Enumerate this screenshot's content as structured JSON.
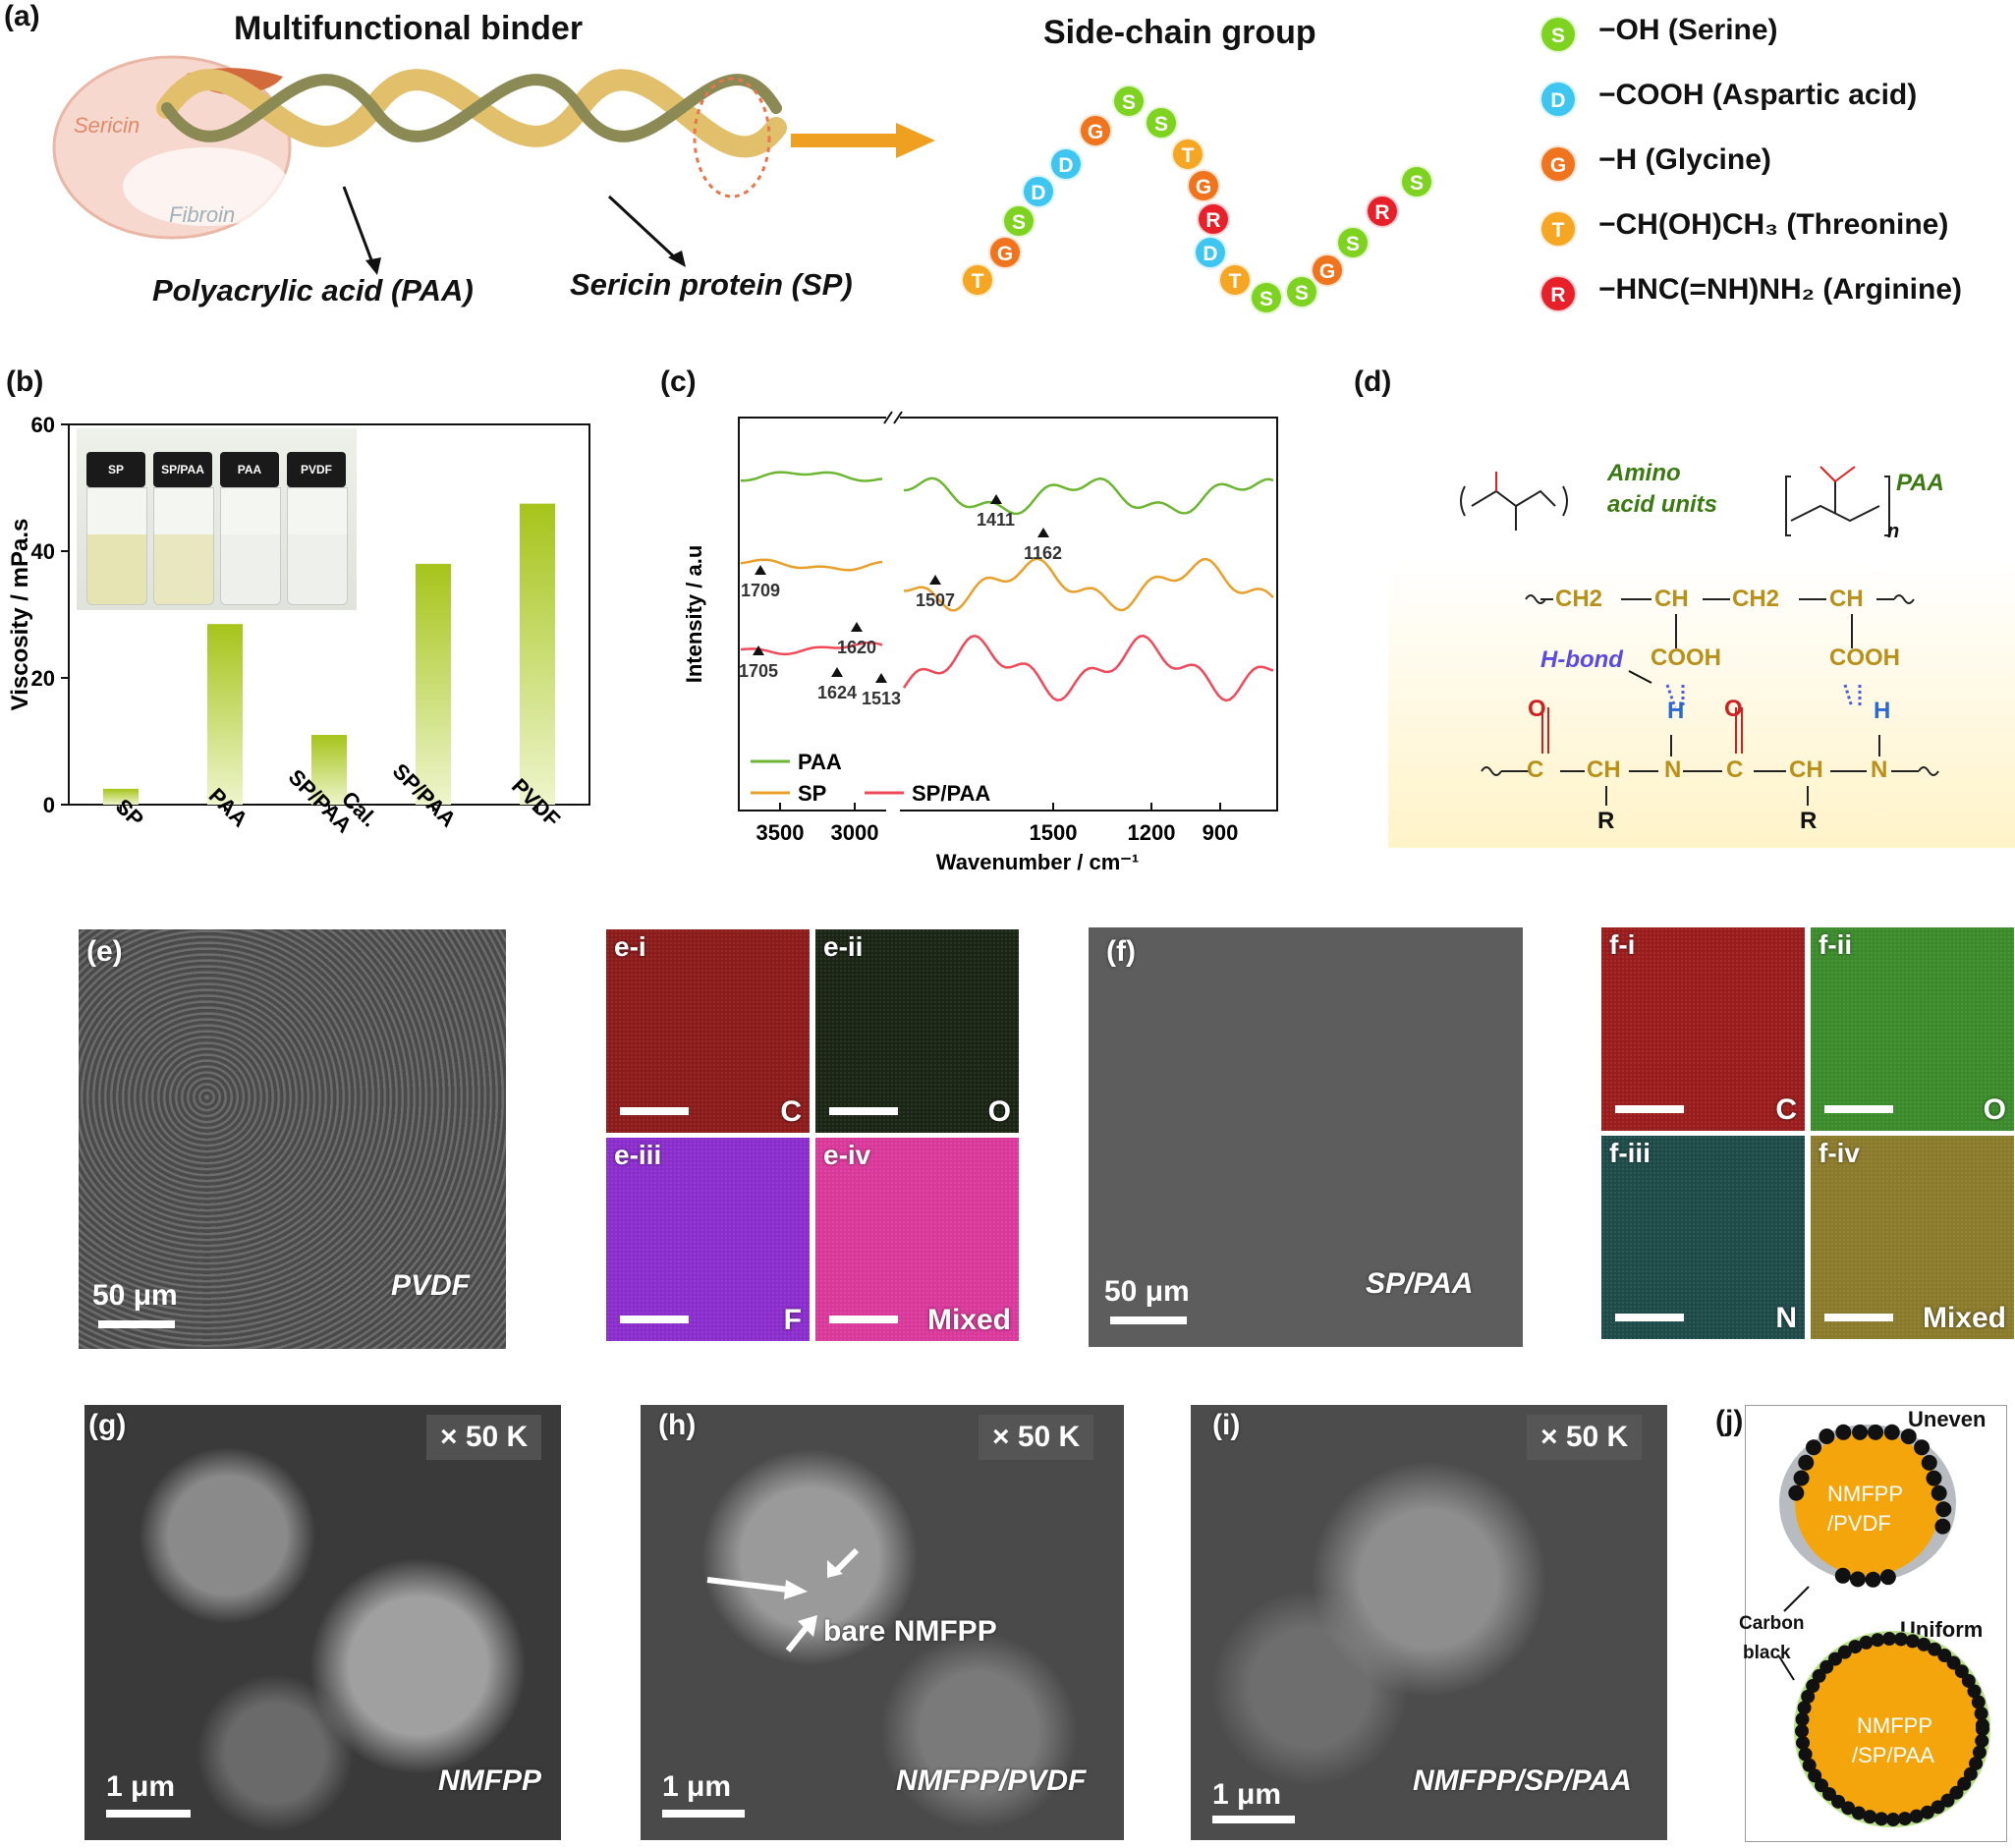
{
  "colors": {
    "serine": "#7ed321",
    "aspartic": "#3ec6f0",
    "glycine": "#f0741e",
    "threonine": "#f5a623",
    "arginine": "#e8202a",
    "bar_green": "#a6c41a",
    "paa_line": "#6cb632",
    "sp_line": "#e8a02a",
    "sppaa_line": "#f04a5a"
  },
  "panel_a": {
    "label": "(a)",
    "title": "Multifunctional binder",
    "side_title": "Side-chain group",
    "sericin": "Sericin",
    "fibroin": "Fibroin",
    "paa_label": "Polyacrylic acid (PAA)",
    "sp_label": "Sericin protein (SP)",
    "beads": [
      "T",
      "G",
      "S",
      "D",
      "D",
      "G",
      "S",
      "S",
      "T",
      "G",
      "R",
      "D",
      "T",
      "S",
      "S",
      "G",
      "S",
      "R",
      "S"
    ],
    "legend": [
      {
        "letter": "S",
        "text": "−OH (Serine)",
        "icon": "serine"
      },
      {
        "letter": "D",
        "text": "−COOH (Aspartic acid)",
        "icon": "aspartic"
      },
      {
        "letter": "G",
        "text": "−H (Glycine)",
        "icon": "glycine"
      },
      {
        "letter": "T",
        "text": "−CH(OH)CH₃ (Threonine)",
        "icon": "threonine"
      },
      {
        "letter": "R",
        "text": "−HNC(=NH)NH₂ (Arginine)",
        "icon": "arginine"
      }
    ]
  },
  "panel_b": {
    "label": "(b)",
    "vial_labels": [
      "SP",
      "SP/PAA",
      "PAA",
      "PVDF"
    ]
  },
  "panel_c": {
    "label": "(c)"
  },
  "panel_d": {
    "label": "(d)",
    "amino": "Amino",
    "acid_units": "acid units",
    "paa": "PAA",
    "n": "n",
    "hbond": "H-bond",
    "top_chain": [
      "CH2",
      "CH",
      "CH2",
      "CH"
    ],
    "cooh": "COOH",
    "h": "H",
    "o": "O",
    "c": "C",
    "ch": "CH",
    "n_atom": "N",
    "r": "R"
  },
  "panel_e": {
    "label": "(e)",
    "scale": "50 μm",
    "name": "PVDF",
    "maps": [
      {
        "tag": "e-i",
        "element": "C",
        "color": "#8b1a1a"
      },
      {
        "tag": "e-ii",
        "element": "O",
        "color": "#1a2414"
      },
      {
        "tag": "e-iii",
        "element": "F",
        "color": "#8a2ccc"
      },
      {
        "tag": "e-iv",
        "element": "Mixed",
        "color": "#d9389a"
      }
    ]
  },
  "panel_f": {
    "label": "(f)",
    "scale": "50 μm",
    "name": "SP/PAA",
    "maps": [
      {
        "tag": "f-i",
        "element": "C",
        "color": "#9a1b1b"
      },
      {
        "tag": "f-ii",
        "element": "O",
        "color": "#3a8a2a"
      },
      {
        "tag": "f-iii",
        "element": "N",
        "color": "#1d4a48"
      },
      {
        "tag": "f-iv",
        "element": "Mixed",
        "color": "#8a7a2a"
      }
    ]
  },
  "panel_g": {
    "label": "(g)",
    "mag": "× 50 K",
    "scale": "1 μm",
    "name": "NMFPP"
  },
  "panel_h": {
    "label": "(h)",
    "mag": "× 50 K",
    "scale": "1 μm",
    "name": "NMFPP/PVDF",
    "annotation": "bare NMFPP"
  },
  "panel_i": {
    "label": "(i)",
    "mag": "× 50 K",
    "scale": "1 μm",
    "name": "NMFPP/SP/PAA"
  },
  "panel_j": {
    "label": "(j)",
    "uneven": "Uneven",
    "uniform": "Uniform",
    "carbon": "Carbon",
    "black": "black",
    "particle1_l1": "NMFPP",
    "particle1_l2": "/PVDF",
    "particle2_l1": "NMFPP",
    "particle2_l2": "/SP/PAA"
  },
  "chart_data": [
    {
      "type": "bar",
      "categories": [
        "SP",
        "PAA",
        "Cal. SP/PAA",
        "SP/PAA",
        "PVDF"
      ],
      "values": [
        2.5,
        28.5,
        11,
        38,
        47.5
      ],
      "ylabel": "Viscosity / mPa.s",
      "ylim": [
        0,
        60
      ],
      "yticks": [
        0,
        20,
        40,
        60
      ]
    },
    {
      "type": "line",
      "xlabel": "Wavenumber / cm⁻¹",
      "ylabel": "Intensity / a.u",
      "xticks": [
        "3500",
        "3000",
        "1500",
        "1200",
        "900"
      ],
      "series": [
        {
          "name": "PAA",
          "color": "#6cb632"
        },
        {
          "name": "SP",
          "color": "#e8a02a"
        },
        {
          "name": "SP/PAA",
          "color": "#f04a5a"
        }
      ],
      "annotations": [
        "1411",
        "1162",
        "1709",
        "1507",
        "1620",
        "1705",
        "1624",
        "1513"
      ]
    }
  ]
}
